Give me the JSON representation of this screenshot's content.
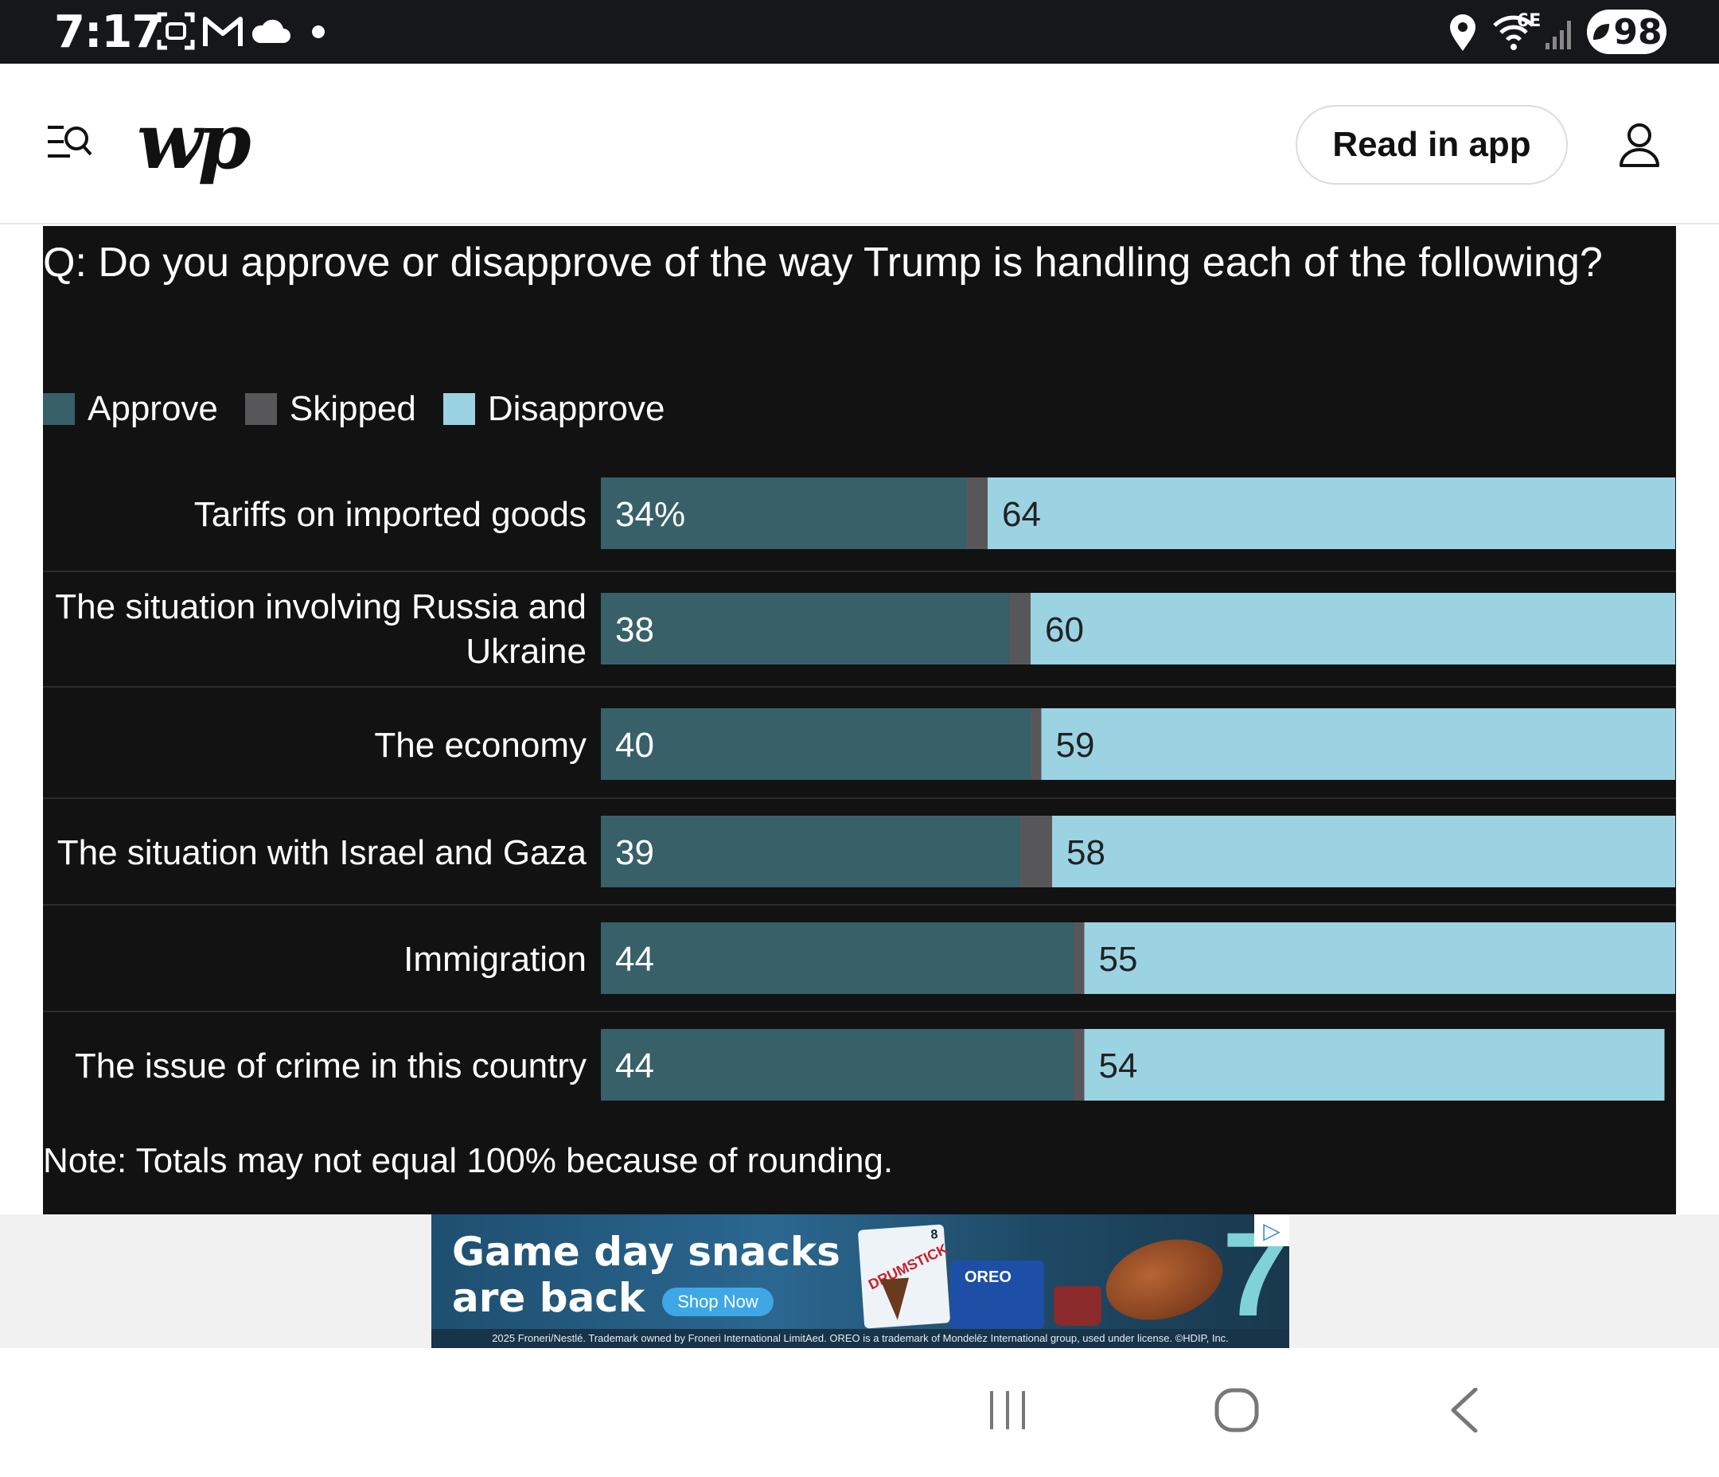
{
  "status_bar": {
    "time": "7:17",
    "battery": "98",
    "network_label": "6E",
    "icons": [
      "screenshot-icon",
      "gmail-icon",
      "cloud-icon",
      "dot-icon",
      "location-icon",
      "wifi-icon",
      "signal-icon",
      "battery-icon"
    ]
  },
  "header": {
    "logo_text": "wp",
    "read_in_app_label": "Read in app",
    "icons": [
      "menu-search-icon",
      "profile-icon"
    ]
  },
  "chart_data": {
    "type": "bar",
    "stacked": true,
    "orientation": "horizontal",
    "title": "Q: Do you approve or disapprove of the way Trump is handling each of the following?",
    "legend": [
      "Approve",
      "Skipped",
      "Disapprove"
    ],
    "legend_placement": "top-left",
    "colors": {
      "approve": "#376068",
      "skipped": "#57575a",
      "disapprove": "#9bd3e3"
    },
    "categories": [
      "Tariffs on imported goods",
      "The situation involving Russia and Ukraine",
      "The economy",
      "The situation with Israel and Gaza",
      "Immigration",
      "The issue of crime in this country"
    ],
    "series": [
      {
        "name": "Approve",
        "values": [
          34,
          38,
          40,
          39,
          44,
          44
        ]
      },
      {
        "name": "Skipped",
        "values": [
          2,
          2,
          1,
          3,
          1,
          1
        ]
      },
      {
        "name": "Disapprove",
        "values": [
          64,
          60,
          59,
          58,
          55,
          54
        ]
      }
    ],
    "data_labels": {
      "approve": [
        "34%",
        "38",
        "40",
        "39",
        "44",
        "44"
      ],
      "disapprove": [
        "64",
        "60",
        "59",
        "58",
        "55",
        "54"
      ]
    },
    "xlim": [
      0,
      100
    ],
    "note": "Note: Totals may not equal 100% because of rounding."
  },
  "ad": {
    "headline_line1": "Game day snacks",
    "headline_line2": "are back",
    "cta": "Shop Now",
    "products": [
      "DRUMSTICK",
      "OREO"
    ],
    "pack_count": "8",
    "jersey_number": "7",
    "legal": "2025 Froneri/Nestlé. Trademark owned by Froneri International LimitAed. OREO is a trademark of Mondelēz International group, used under license. ©HDIP, Inc.",
    "icons": [
      "adchoices-icon"
    ]
  },
  "nav_bar": {
    "icons": [
      "recent-apps-icon",
      "home-icon",
      "back-icon"
    ]
  }
}
